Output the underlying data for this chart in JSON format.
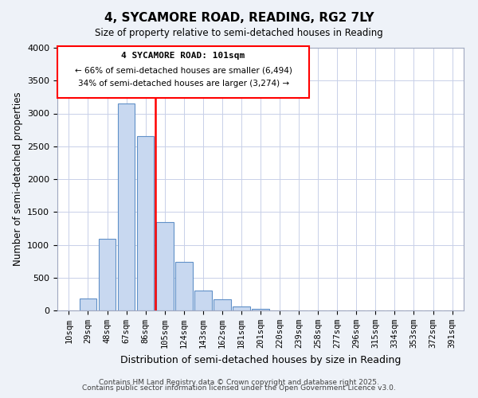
{
  "title": "4, SYCAMORE ROAD, READING, RG2 7LY",
  "subtitle": "Size of property relative to semi-detached houses in Reading",
  "bar_labels": [
    "10sqm",
    "29sqm",
    "48sqm",
    "67sqm",
    "86sqm",
    "105sqm",
    "124sqm",
    "143sqm",
    "162sqm",
    "181sqm",
    "201sqm",
    "220sqm",
    "239sqm",
    "258sqm",
    "277sqm",
    "296sqm",
    "315sqm",
    "334sqm",
    "353sqm",
    "372sqm",
    "391sqm"
  ],
  "bar_values": [
    0,
    180,
    1090,
    3150,
    2660,
    1350,
    740,
    300,
    170,
    65,
    30,
    0,
    0,
    0,
    0,
    0,
    0,
    0,
    0,
    0,
    0
  ],
  "bar_color": "#c8d8f0",
  "bar_edge_color": "#6090c8",
  "red_line_index": 5,
  "ylabel": "Number of semi-detached properties",
  "xlabel": "Distribution of semi-detached houses by size in Reading",
  "ylim": [
    0,
    4000
  ],
  "yticks": [
    0,
    500,
    1000,
    1500,
    2000,
    2500,
    3000,
    3500,
    4000
  ],
  "annotation_title": "4 SYCAMORE ROAD: 101sqm",
  "annotation_line1": "← 66% of semi-detached houses are smaller (6,494)",
  "annotation_line2": "34% of semi-detached houses are larger (3,274) →",
  "footnote1": "Contains HM Land Registry data © Crown copyright and database right 2025.",
  "footnote2": "Contains public sector information licensed under the Open Government Licence v3.0.",
  "background_color": "#eef2f8",
  "plot_background": "#ffffff",
  "grid_color": "#c8d0e8"
}
